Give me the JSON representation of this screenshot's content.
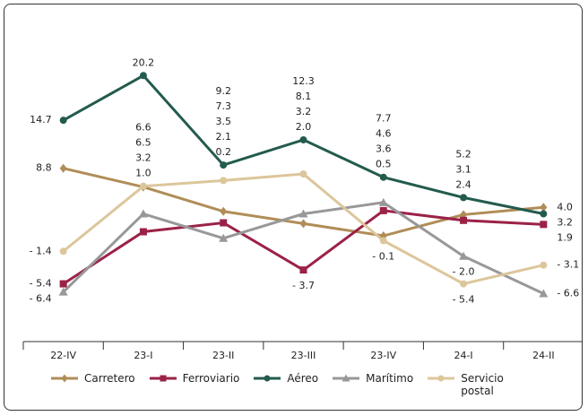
{
  "chart_data": {
    "type": "line",
    "categories": [
      "22-IV",
      "23-I",
      "23-II",
      "23-III",
      "23-IV",
      "24-I",
      "24-II"
    ],
    "ylim": [
      -12.5,
      21
    ],
    "series": [
      {
        "name": "Carretero",
        "color": "#b08d57",
        "marker": "diamond",
        "values": [
          8.8,
          6.5,
          3.5,
          2.0,
          0.5,
          3.1,
          4.0
        ],
        "value_labels": [
          "8.8",
          "6.5",
          "3.5",
          "2.0",
          "0.5",
          "3.1",
          "4.0"
        ]
      },
      {
        "name": "Ferroviario",
        "color": "#9b2247",
        "marker": "square",
        "values": [
          -5.4,
          1.0,
          2.1,
          -3.7,
          3.6,
          2.4,
          1.9
        ],
        "value_labels": [
          "- 5.4",
          "1.0",
          "2.1",
          "- 3.7",
          "3.6",
          "2.4",
          "1.9"
        ]
      },
      {
        "name": "Aéreo",
        "color": "#235b4e",
        "marker": "circle",
        "values": [
          14.7,
          20.2,
          9.2,
          12.3,
          7.7,
          5.2,
          3.2
        ],
        "value_labels": [
          "14.7",
          "20.2",
          "9.2",
          "12.3",
          "7.7",
          "5.2",
          "3.2"
        ]
      },
      {
        "name": "Marítimo",
        "color": "#98989a",
        "marker": "triangle",
        "values": [
          -6.4,
          3.2,
          0.2,
          3.2,
          4.6,
          -2.0,
          -6.6
        ],
        "value_labels": [
          "- 6.4",
          "3.2",
          "0.2",
          "3.2",
          "4.6",
          "- 2.0",
          "- 6.6"
        ]
      },
      {
        "name": "Servicio postal",
        "color": "#dcc69b",
        "marker": "circle",
        "values": [
          -1.4,
          6.6,
          7.3,
          8.1,
          -0.1,
          -5.4,
          -3.1
        ],
        "value_labels": [
          "- 1.4",
          "6.6",
          "7.3",
          "8.1",
          "- 0.1",
          "- 5.4",
          "- 3.1"
        ]
      }
    ]
  }
}
